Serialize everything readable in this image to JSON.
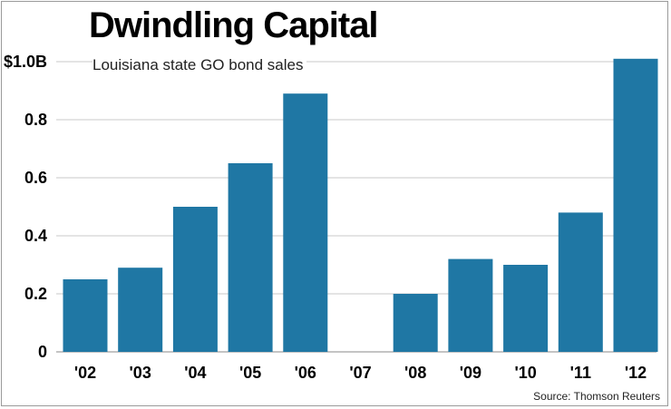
{
  "chart_data": {
    "type": "bar",
    "title": "Dwindling Capital",
    "subtitle": "Louisiana state GO bond sales",
    "source": "Source: Thomson Reuters",
    "categories": [
      "'02",
      "'03",
      "'04",
      "'05",
      "'06",
      "'07",
      "'08",
      "'09",
      "'10",
      "'11",
      "'12"
    ],
    "values": [
      0.25,
      0.29,
      0.5,
      0.65,
      0.89,
      0,
      0.2,
      0.32,
      0.3,
      0.48,
      1.01
    ],
    "yticks": [
      {
        "value": 0,
        "label": "0"
      },
      {
        "value": 0.2,
        "label": "0.2"
      },
      {
        "value": 0.4,
        "label": "0.4"
      },
      {
        "value": 0.6,
        "label": "0.6"
      },
      {
        "value": 0.8,
        "label": "0.8"
      },
      {
        "value": 1.0,
        "label": "$1.0B"
      }
    ],
    "ylim": [
      0,
      1.0
    ],
    "grid": true,
    "bar_color": "#1f77a4",
    "grid_color": "#c8c8c8"
  }
}
